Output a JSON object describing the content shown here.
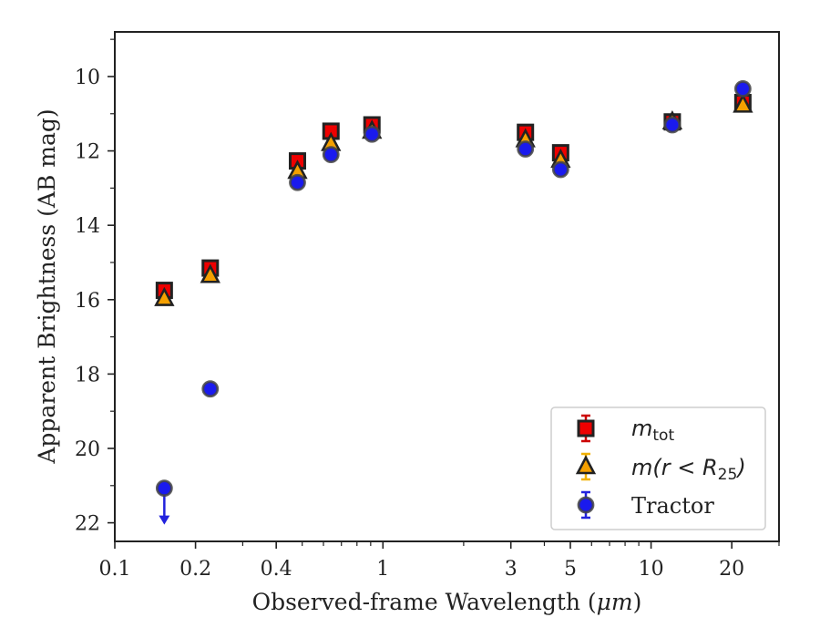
{
  "chart_data": {
    "type": "scatter",
    "xlabel_prefix": "Observed-frame Wavelength (",
    "xlabel_unit": "μm",
    "xlabel_suffix": ")",
    "ylabel": "Apparent Brightness (AB mag)",
    "xscale": "log",
    "xlim": [
      0.1,
      30
    ],
    "ylim": [
      22.5,
      8.8
    ],
    "y_inverted": true,
    "x_ticks": [
      {
        "value": 0.1,
        "label": "0.1"
      },
      {
        "value": 0.2,
        "label": "0.2"
      },
      {
        "value": 0.4,
        "label": "0.4"
      },
      {
        "value": 1,
        "label": "1"
      },
      {
        "value": 3,
        "label": "3"
      },
      {
        "value": 5,
        "label": "5"
      },
      {
        "value": 10,
        "label": "10"
      },
      {
        "value": 20,
        "label": "20"
      }
    ],
    "x_minor_ticks": [
      0.3,
      0.5,
      0.6,
      0.7,
      0.8,
      0.9,
      2,
      4,
      6,
      7,
      8,
      9,
      30
    ],
    "y_ticks": [
      {
        "value": 10,
        "label": "10"
      },
      {
        "value": 12,
        "label": "12"
      },
      {
        "value": 14,
        "label": "14"
      },
      {
        "value": 16,
        "label": "16"
      },
      {
        "value": 18,
        "label": "18"
      },
      {
        "value": 20,
        "label": "20"
      },
      {
        "value": 22,
        "label": "22"
      }
    ],
    "y_minor_ticks": [
      9,
      11,
      13,
      15,
      17,
      19,
      21
    ],
    "grid": false,
    "legend_position": "lower-right",
    "series": [
      {
        "name_main": "m",
        "name_sub": "tot",
        "name_rest": "",
        "marker": "square",
        "color": "#ee0000",
        "edge_color": "#222222",
        "error_color": "#cc0000",
        "points": [
          {
            "x": 0.153,
            "y": 15.75
          },
          {
            "x": 0.227,
            "y": 15.15
          },
          {
            "x": 0.48,
            "y": 12.27
          },
          {
            "x": 0.64,
            "y": 11.47
          },
          {
            "x": 0.91,
            "y": 11.3
          },
          {
            "x": 3.4,
            "y": 11.5
          },
          {
            "x": 4.6,
            "y": 12.05
          },
          {
            "x": 12.0,
            "y": 11.22
          },
          {
            "x": 22.0,
            "y": 10.7
          }
        ]
      },
      {
        "name_main": "m",
        "name_sub": "25",
        "name_rest": "(r < R",
        "name_close": ")",
        "marker": "triangle",
        "color": "#f5a000",
        "edge_color": "#222222",
        "error_color": "#f0b000",
        "points": [
          {
            "x": 0.153,
            "y": 15.97
          },
          {
            "x": 0.227,
            "y": 15.35
          },
          {
            "x": 0.48,
            "y": 12.55
          },
          {
            "x": 0.64,
            "y": 11.8
          },
          {
            "x": 0.91,
            "y": 11.47
          },
          {
            "x": 3.4,
            "y": 11.7
          },
          {
            "x": 4.6,
            "y": 12.25
          },
          {
            "x": 12.0,
            "y": 11.22
          },
          {
            "x": 22.0,
            "y": 10.77
          }
        ]
      },
      {
        "name_main": "Tractor",
        "marker": "circle",
        "color": "#1a1aee",
        "edge_color": "#444444",
        "error_color": "#2222dd",
        "points": [
          {
            "x": 0.153,
            "y": 21.07,
            "upper_limit": true
          },
          {
            "x": 0.227,
            "y": 18.4
          },
          {
            "x": 0.48,
            "y": 12.85
          },
          {
            "x": 0.64,
            "y": 12.1
          },
          {
            "x": 0.91,
            "y": 11.55
          },
          {
            "x": 3.4,
            "y": 11.95
          },
          {
            "x": 4.6,
            "y": 12.5
          },
          {
            "x": 12.0,
            "y": 11.3
          },
          {
            "x": 22.0,
            "y": 10.33
          }
        ]
      }
    ]
  }
}
